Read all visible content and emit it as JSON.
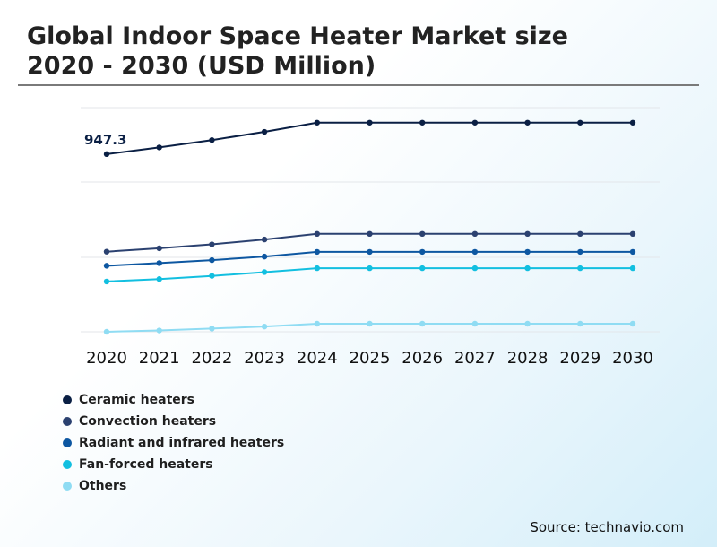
{
  "title_line1": "Global Indoor Space Heater Market size",
  "title_line2": "2020 - 2030 (USD Million)",
  "source": "Source: technavio.com",
  "chart_data": {
    "type": "line",
    "x": [
      "2020",
      "2021",
      "2022",
      "2023",
      "2024",
      "2025",
      "2026",
      "2027",
      "2028",
      "2029",
      "2030"
    ],
    "ylim": [
      0,
      1200
    ],
    "grid": true,
    "legend_position": "bottom-left",
    "annotation": {
      "series": "Ceramic heaters",
      "x": "2020",
      "text": "947.3"
    },
    "series": [
      {
        "name": "Ceramic heaters",
        "color": "#0a1f44",
        "values": [
          947.3,
          983,
          1022,
          1066,
          1115,
          1115,
          1115,
          1115,
          1115,
          1115,
          1115
        ]
      },
      {
        "name": "Convection heaters",
        "color": "#2b4170",
        "values": [
          427,
          445,
          466,
          492,
          522,
          522,
          522,
          522,
          522,
          522,
          522
        ]
      },
      {
        "name": "Radiant and infrared heaters",
        "color": "#0d57a1",
        "values": [
          352,
          366,
          382,
          401,
          426,
          426,
          426,
          426,
          426,
          426,
          426
        ]
      },
      {
        "name": "Fan-forced heaters",
        "color": "#12bfe0",
        "values": [
          268,
          281,
          298,
          318,
          339,
          339,
          339,
          339,
          339,
          339,
          339
        ]
      },
      {
        "name": "Others",
        "color": "#8fdcf3",
        "values": [
          0,
          7,
          17,
          28,
          43,
          43,
          43,
          43,
          43,
          43,
          43
        ]
      }
    ]
  }
}
